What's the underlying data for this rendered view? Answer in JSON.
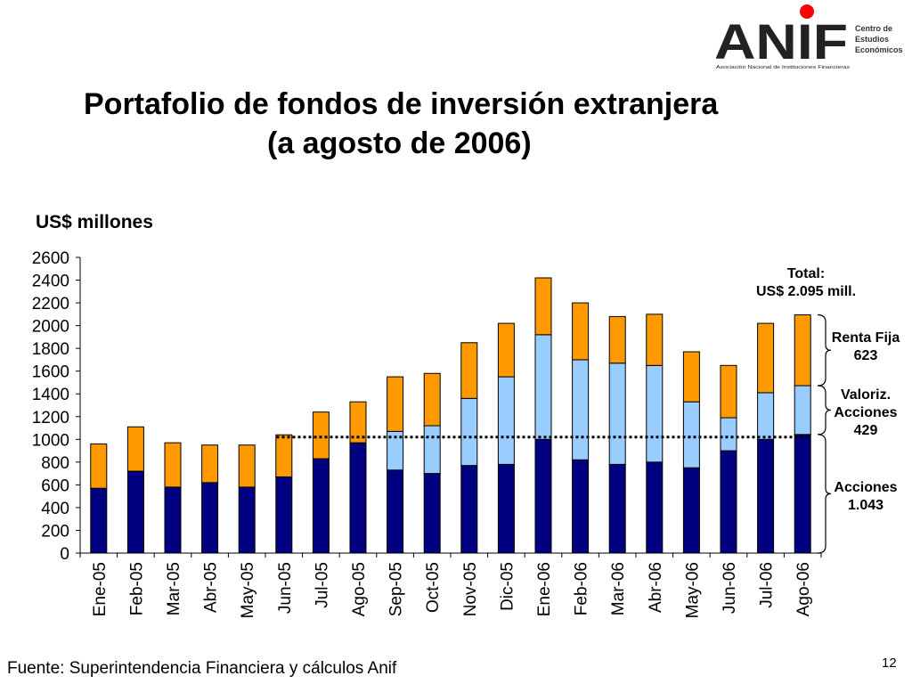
{
  "header": {
    "title_line1": "Portafolio de fondos de inversión extranjera",
    "title_line2": "(a agosto de 2006)",
    "logo_text": "ANIF",
    "logo_subtext": "Asociación Nacional de Instituciones Financieras",
    "logo_side": [
      "Centro de",
      "Estudios",
      "Económicos"
    ]
  },
  "unit_label": "US$ millones",
  "footer": {
    "source": "Fuente: Superintendencia Financiera y cálculos Anif",
    "page_number": "12"
  },
  "annotations": {
    "total_line1": "Total:",
    "total_line2": "US$ 2.095 mill.",
    "renta_fija_label": "Renta Fija",
    "renta_fija_value": "623",
    "valoriz_label1": "Valoriz.",
    "valoriz_label2": "Acciones",
    "valoriz_value": "429",
    "acciones_label": "Acciones",
    "acciones_value": "1.043"
  },
  "colors": {
    "acciones": "#000080",
    "valorizacion": "#99CCFF",
    "renta_fija": "#FF9900",
    "logo_dot": "#FF0000"
  },
  "chart_data": {
    "type": "bar",
    "stacked": true,
    "categories": [
      "Ene-05",
      "Feb-05",
      "Mar-05",
      "Abr-05",
      "May-05",
      "Jun-05",
      "Jul-05",
      "Ago-05",
      "Sep-05",
      "Oct-05",
      "Nov-05",
      "Dic-05",
      "Ene-06",
      "Feb-06",
      "Mar-06",
      "Abr-06",
      "May-06",
      "Jun-06",
      "Jul-06",
      "Ago-06"
    ],
    "series": [
      {
        "values": [
          570,
          720,
          580,
          620,
          580,
          670,
          830,
          970,
          730,
          700,
          770,
          780,
          1000,
          820,
          780,
          800,
          750,
          900,
          1000,
          1043
        ]
      },
      {
        "values": [
          0,
          0,
          0,
          0,
          0,
          0,
          0,
          0,
          340,
          420,
          590,
          770,
          920,
          880,
          890,
          850,
          580,
          290,
          410,
          429
        ]
      },
      {
        "values": [
          390,
          390,
          390,
          330,
          370,
          370,
          410,
          360,
          480,
          460,
          490,
          470,
          500,
          500,
          410,
          450,
          440,
          460,
          610,
          623
        ]
      }
    ],
    "ylim": [
      0,
      2600
    ],
    "yticks": [
      0,
      200,
      400,
      600,
      800,
      1000,
      1200,
      1400,
      1600,
      1800,
      2000,
      2200,
      2400,
      2600
    ],
    "reference_line": 1020,
    "grid": false,
    "legend": "none"
  }
}
